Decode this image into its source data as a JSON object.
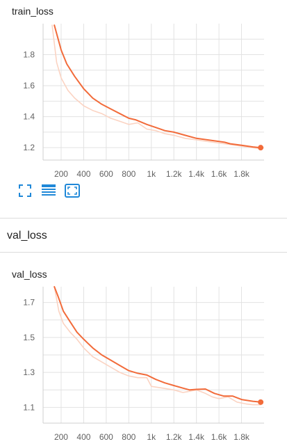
{
  "colors": {
    "smoothed": "#f26b3a",
    "raw": "#fbd3c2",
    "grid": "#e2e2e2",
    "axis": "#cfcfcf",
    "tool": "#1f88d8"
  },
  "section": {
    "title": "val_loss"
  },
  "toolbar": {
    "icons": [
      "fit-to-view-icon",
      "data-table-icon",
      "zoom-extents-icon"
    ]
  },
  "chart_data": [
    {
      "type": "line",
      "title": "train_loss",
      "x_ticks": [
        200,
        400,
        600,
        800,
        1000,
        1200,
        1400,
        1600,
        1800
      ],
      "x_tick_labels": [
        "200",
        "400",
        "600",
        "800",
        "1k",
        "1.2k",
        "1.4k",
        "1.6k",
        "1.8k"
      ],
      "y_ticks": [
        1.2,
        1.4,
        1.6,
        1.8
      ],
      "y_tick_labels": [
        "1.2",
        "1.4",
        "1.6",
        "1.8"
      ],
      "xlim": [
        40,
        2000
      ],
      "ylim": [
        1.12,
        2.0
      ],
      "grid": true,
      "series": [
        {
          "role": "raw",
          "x": [
            120,
            160,
            200,
            260,
            320,
            400,
            480,
            560,
            640,
            720,
            800,
            880,
            960,
            1040,
            1120,
            1200,
            1300,
            1400,
            1500,
            1600,
            1700,
            1800,
            1900,
            1970
          ],
          "y": [
            1.99,
            1.75,
            1.65,
            1.57,
            1.52,
            1.47,
            1.44,
            1.42,
            1.39,
            1.37,
            1.35,
            1.36,
            1.32,
            1.31,
            1.29,
            1.28,
            1.26,
            1.25,
            1.24,
            1.23,
            1.22,
            1.21,
            1.2,
            1.195
          ]
        },
        {
          "role": "smoothed",
          "x": [
            140,
            200,
            250,
            320,
            400,
            480,
            560,
            640,
            720,
            800,
            860,
            960,
            1040,
            1120,
            1200,
            1300,
            1400,
            1500,
            1600,
            1650,
            1700,
            1800,
            1900,
            1970
          ],
          "y": [
            1.99,
            1.83,
            1.74,
            1.66,
            1.58,
            1.52,
            1.48,
            1.45,
            1.42,
            1.39,
            1.38,
            1.35,
            1.33,
            1.31,
            1.3,
            1.28,
            1.26,
            1.25,
            1.24,
            1.235,
            1.225,
            1.215,
            1.205,
            1.2
          ]
        }
      ]
    },
    {
      "type": "line",
      "title": "val_loss",
      "x_ticks": [
        200,
        400,
        600,
        800,
        1000,
        1200,
        1400,
        1600,
        1800
      ],
      "x_tick_labels": [
        "200",
        "400",
        "600",
        "800",
        "1k",
        "1.2k",
        "1.4k",
        "1.6k",
        "1.8k"
      ],
      "y_ticks": [
        1.1,
        1.3,
        1.5,
        1.7
      ],
      "y_tick_labels": [
        "1.1",
        "1.3",
        "1.5",
        "1.7"
      ],
      "xlim": [
        40,
        2000
      ],
      "ylim": [
        1.01,
        1.79
      ],
      "grid": true,
      "series": [
        {
          "role": "raw",
          "x": [
            140,
            180,
            220,
            280,
            340,
            400,
            480,
            560,
            640,
            720,
            800,
            880,
            960,
            1000,
            1100,
            1200,
            1280,
            1320,
            1400,
            1480,
            1540,
            1600,
            1680,
            1760,
            1840,
            1900,
            1970
          ],
          "y": [
            1.79,
            1.65,
            1.58,
            1.53,
            1.49,
            1.44,
            1.39,
            1.36,
            1.33,
            1.3,
            1.28,
            1.27,
            1.27,
            1.22,
            1.21,
            1.2,
            1.185,
            1.19,
            1.2,
            1.18,
            1.16,
            1.15,
            1.16,
            1.13,
            1.12,
            1.115,
            1.115
          ]
        },
        {
          "role": "smoothed",
          "x": [
            140,
            170,
            220,
            280,
            340,
            400,
            480,
            560,
            640,
            720,
            800,
            880,
            960,
            1040,
            1120,
            1200,
            1280,
            1340,
            1400,
            1480,
            1560,
            1640,
            1720,
            1800,
            1900,
            1970
          ],
          "y": [
            1.79,
            1.74,
            1.65,
            1.59,
            1.53,
            1.49,
            1.44,
            1.4,
            1.37,
            1.34,
            1.31,
            1.295,
            1.285,
            1.26,
            1.24,
            1.225,
            1.21,
            1.2,
            1.203,
            1.205,
            1.18,
            1.165,
            1.165,
            1.145,
            1.135,
            1.13
          ]
        }
      ]
    }
  ]
}
